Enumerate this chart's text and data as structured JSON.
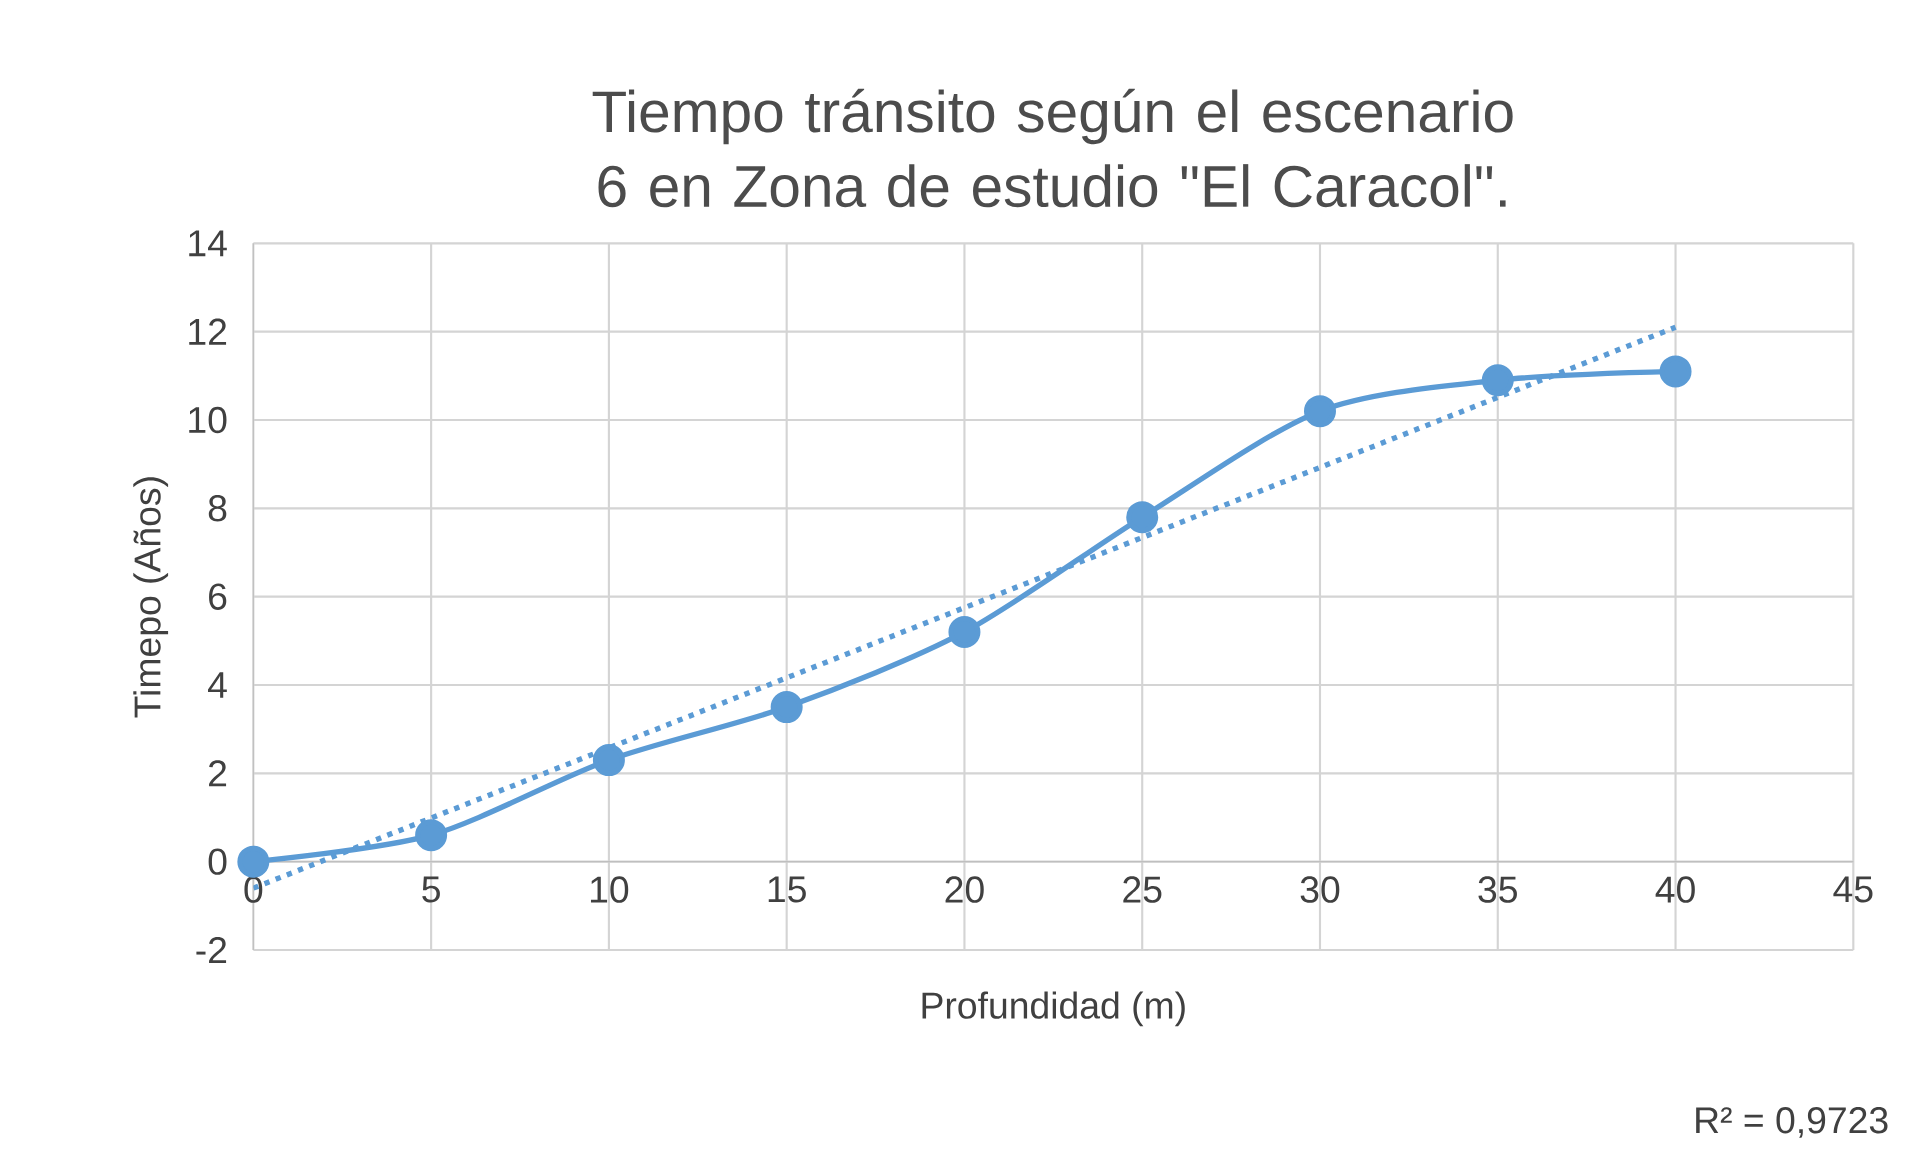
{
  "chart_data": {
    "type": "line",
    "title": "Tiempo tránsito según el escenario 6 en Zona de estudio \"El Caracol\".",
    "xlabel": "Profundidad (m)",
    "ylabel": "Timepo (Años)",
    "x": [
      0,
      5,
      10,
      15,
      20,
      25,
      30,
      35,
      40
    ],
    "series": [
      {
        "color": "#5b9bd5",
        "values": [
          0,
          0.6,
          2.3,
          3.5,
          5.2,
          7.8,
          10.2,
          10.9,
          11.1
        ],
        "marker": "circle",
        "line_style": "solid"
      },
      {
        "type": "line",
        "color": "#5b9bd5",
        "x": [
          0,
          40
        ],
        "values": [
          -0.6,
          12.1
        ],
        "marker": "none",
        "line_style": "dotted"
      }
    ],
    "xlim": [
      0,
      45
    ],
    "xticks": [
      0,
      5,
      10,
      15,
      20,
      25,
      30,
      35,
      40,
      45
    ],
    "ylim": [
      -2,
      14
    ],
    "yticks": [
      -2,
      0,
      2,
      4,
      6,
      8,
      10,
      12,
      14
    ],
    "grid": true,
    "annotations": [
      "R² = 0,9723"
    ]
  }
}
